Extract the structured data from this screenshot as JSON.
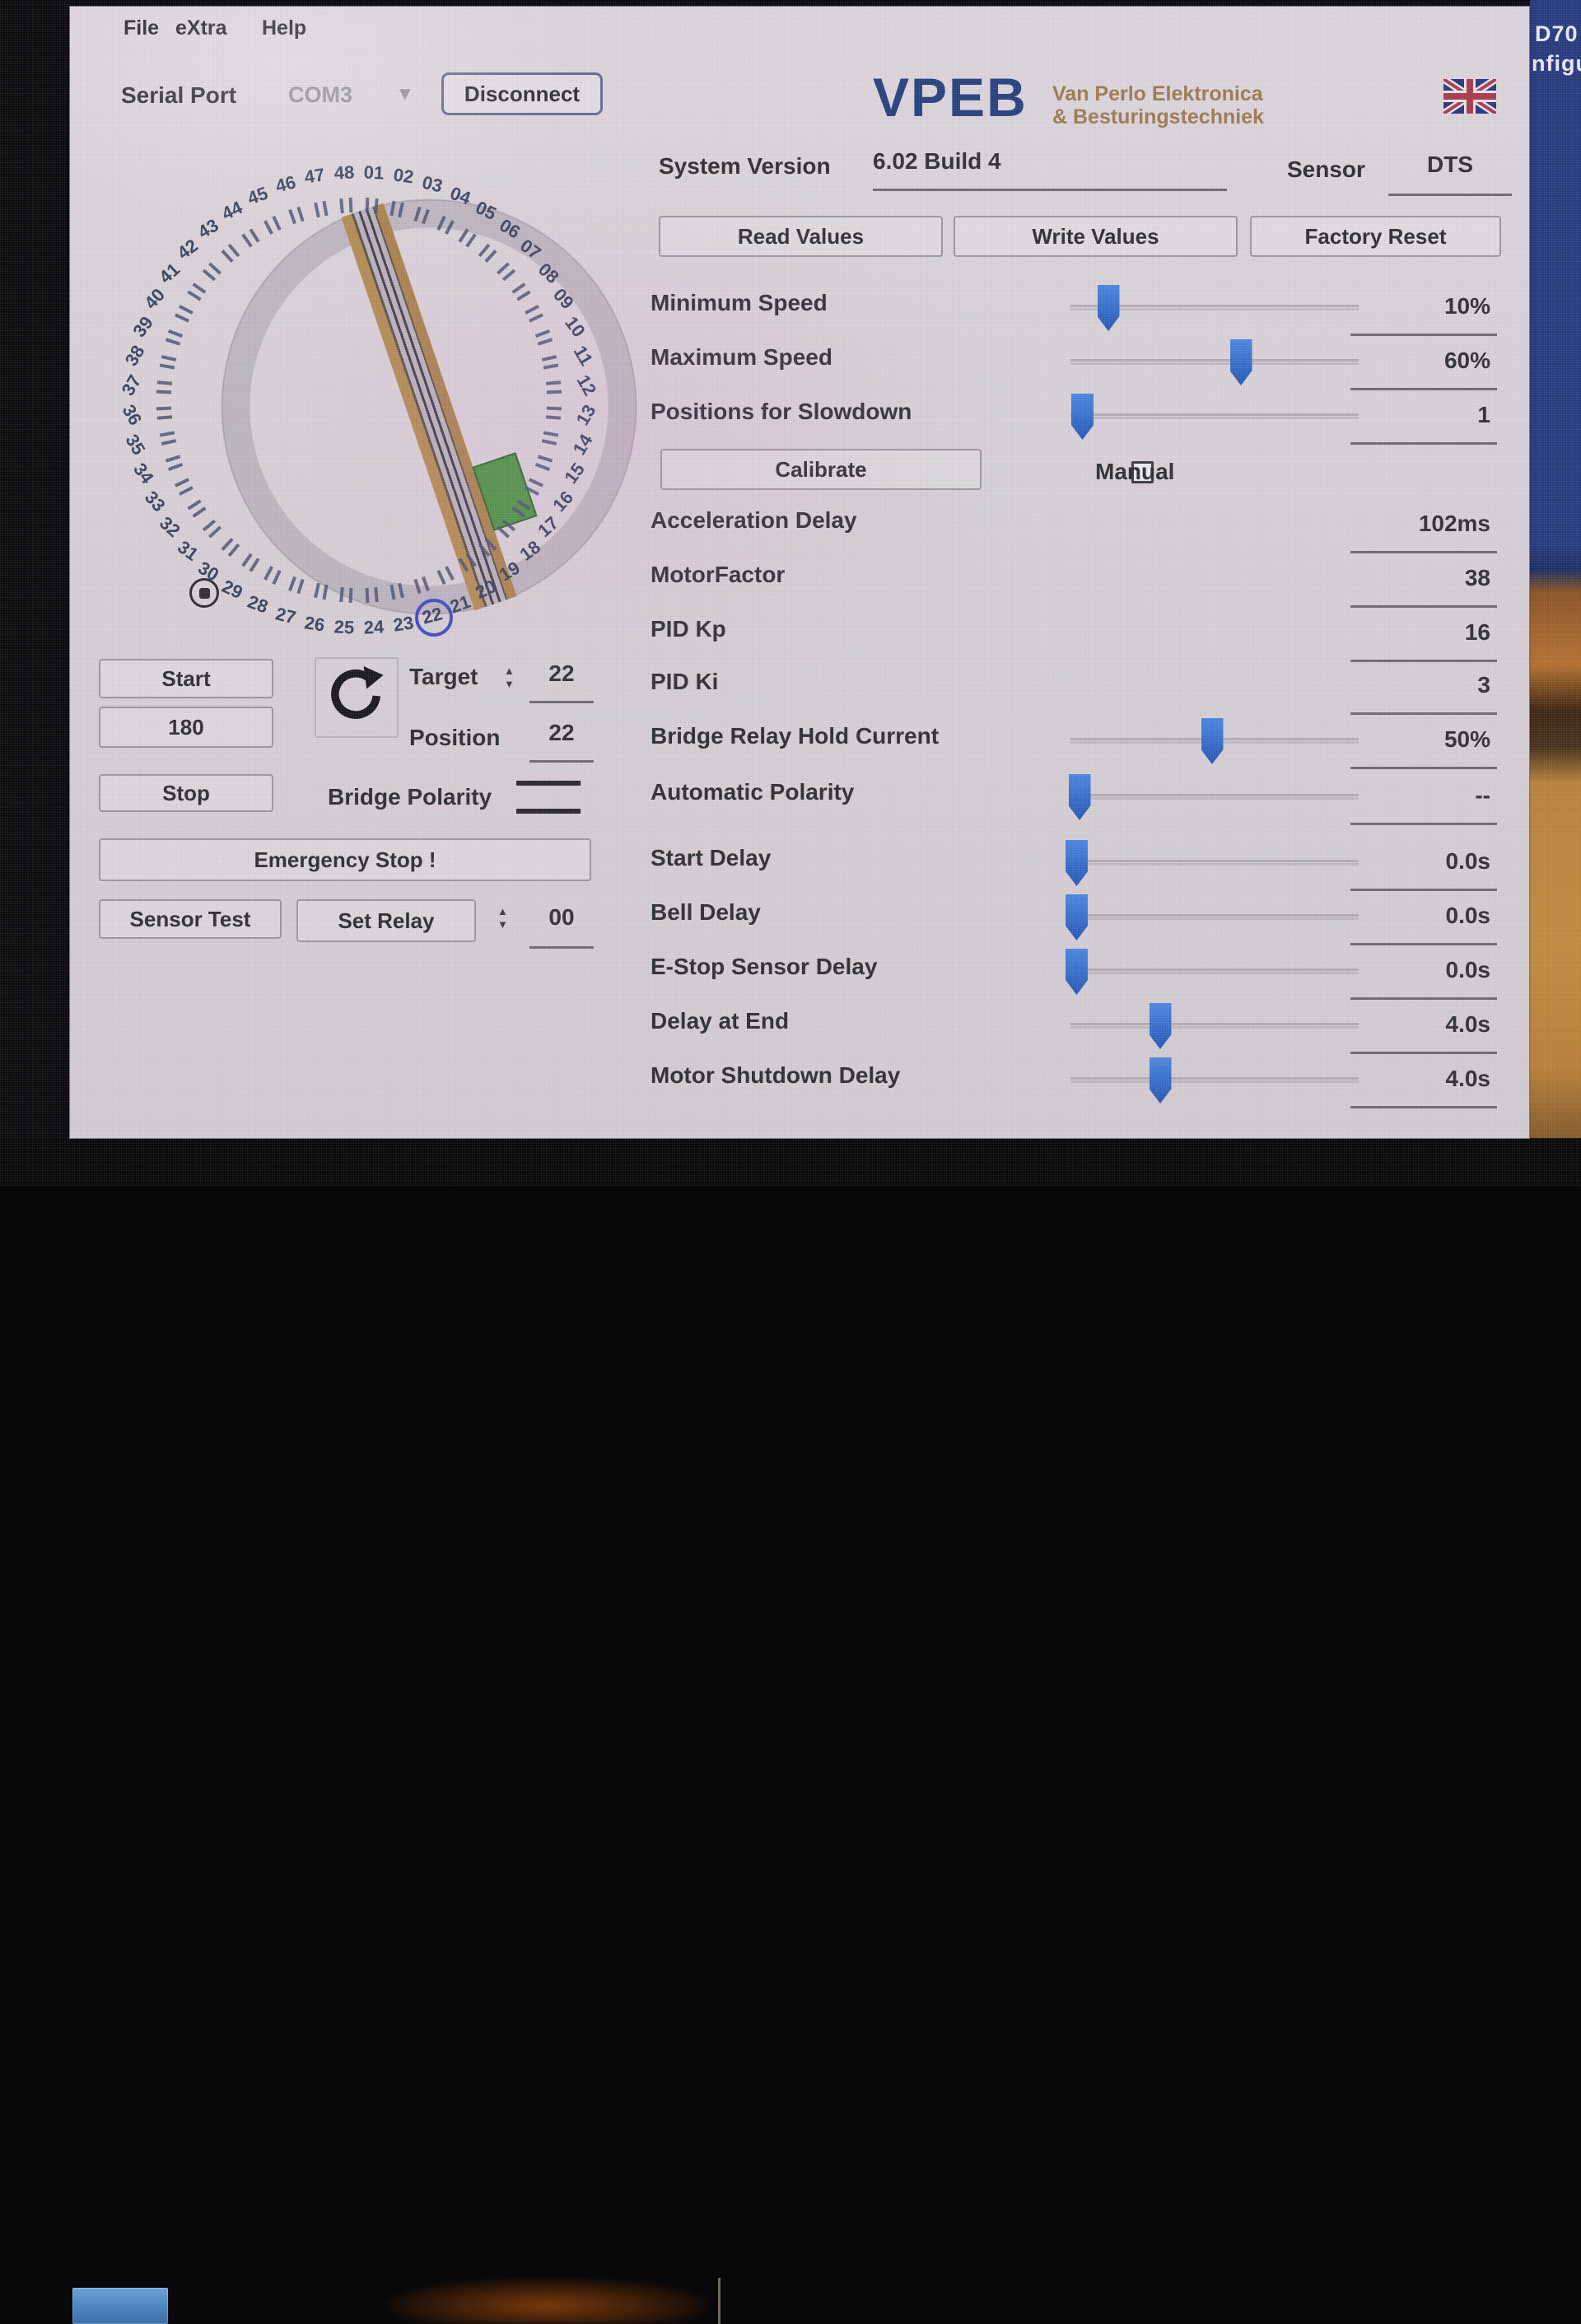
{
  "app": {
    "menu": [
      {
        "label": "File"
      },
      {
        "label": "eXtra"
      },
      {
        "label": "Help"
      }
    ],
    "serial_port": {
      "label": "Serial Port",
      "value": "COM3",
      "chevron": "▾",
      "disconnect_label": "Disconnect"
    },
    "logo": {
      "name": "VPEB",
      "tagline_line1": "Van Perlo Elektronica",
      "tagline_line2": "& Besturingstechniek"
    },
    "system_version": {
      "label": "System Version",
      "value": "6.02 Build 4"
    },
    "sensor": {
      "label": "Sensor",
      "value": "DTS"
    },
    "action_buttons": {
      "read": "Read Values",
      "write": "Write Values",
      "factory_reset": "Factory Reset"
    },
    "calibrate": {
      "button_label": "Calibrate",
      "manual_label": "Manual",
      "manual_checked": false
    },
    "settings_rows": [
      {
        "label": "Minimum Speed",
        "value": "10%",
        "slider_pct": 13
      },
      {
        "label": "Maximum Speed",
        "value": "60%",
        "slider_pct": 59
      },
      {
        "label": "Positions for Slowdown",
        "value": "1",
        "slider_pct": 4
      },
      {
        "label": "Acceleration Delay",
        "value": "102ms",
        "slider_pct": null
      },
      {
        "label": "MotorFactor",
        "value": "38",
        "slider_pct": null
      },
      {
        "label": "PID Kp",
        "value": "16",
        "slider_pct": null
      },
      {
        "label": "PID Ki",
        "value": "3",
        "slider_pct": null
      },
      {
        "label": "Bridge Relay Hold Current",
        "value": "50%",
        "slider_pct": 49
      },
      {
        "label": "Automatic Polarity",
        "value": "--",
        "slider_pct": 3
      },
      {
        "label": "Start Delay",
        "value": "0.0s",
        "slider_pct": 2
      },
      {
        "label": "Bell Delay",
        "value": "0.0s",
        "slider_pct": 2
      },
      {
        "label": "E-Stop Sensor Delay",
        "value": "0.0s",
        "slider_pct": 2
      },
      {
        "label": "Delay at End",
        "value": "4.0s",
        "slider_pct": 31
      },
      {
        "label": "Motor Shutdown Delay",
        "value": "4.0s",
        "slider_pct": 31
      }
    ]
  },
  "turntable": {
    "positions": [
      "01",
      "02",
      "03",
      "04",
      "05",
      "06",
      "07",
      "08",
      "09",
      "10",
      "11",
      "12",
      "13",
      "14",
      "15",
      "16",
      "17",
      "18",
      "19",
      "20",
      "21",
      "22",
      "23",
      "24",
      "25",
      "26",
      "27",
      "28",
      "29",
      "30",
      "31",
      "32",
      "33",
      "34",
      "35",
      "36",
      "37",
      "38",
      "39",
      "40",
      "41",
      "42",
      "43",
      "44",
      "45",
      "46",
      "47",
      "48"
    ],
    "selected_position": "22",
    "bridge_colors": {
      "deck_wood": "#b28c52",
      "deck_grey": "#b9b3bc",
      "rail": "#3e3e49",
      "cabin_green": "#4c9444"
    },
    "selection_ring_color": "#3c4ec0"
  },
  "controls": {
    "start_label": "Start",
    "preset_label": "180",
    "stop_label": "Stop",
    "target": {
      "label": "Target",
      "value": "22"
    },
    "position": {
      "label": "Position",
      "value": "22"
    },
    "bridge_polarity_label": "Bridge Polarity",
    "emergency_label": "Emergency Stop !",
    "sensor_test_label": "Sensor Test",
    "set_relay_label": "Set Relay",
    "relay_value": "00"
  },
  "desktop": {
    "fragment_top": "D70",
    "fragment_bottom": "nfigu"
  },
  "colors": {
    "accent_blue": "#2f6cc8",
    "logo_navy": "#24407e",
    "logo_tan": "#9c7950",
    "window_grey": "#d7d1d7"
  }
}
